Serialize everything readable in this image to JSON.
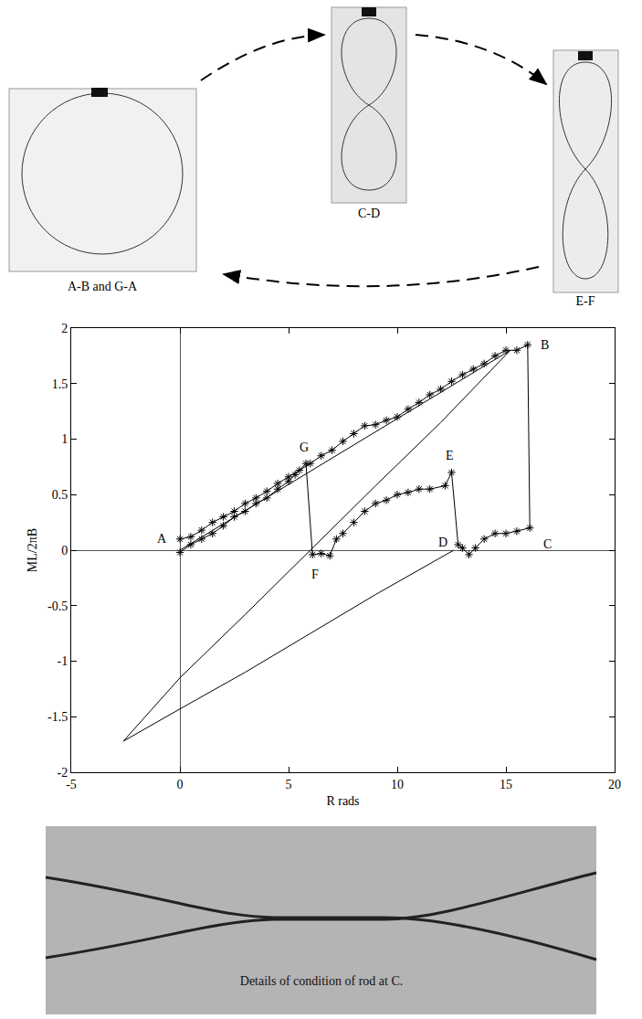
{
  "chart_data": {
    "type": "line",
    "x_label": "R rads",
    "y_label": "ML/2πB",
    "xlim": [
      -5,
      20
    ],
    "ylim": [
      -2,
      2
    ],
    "xticks": [
      -5,
      0,
      5,
      10,
      15,
      20
    ],
    "yticks": [
      -2,
      -1.5,
      -1,
      -0.5,
      0,
      0.5,
      1,
      1.5,
      2
    ],
    "grid": false,
    "series": [
      {
        "color": "#000000",
        "marker": "none",
        "line_style": "solid",
        "x": [
          0,
          15.2,
          12,
          9,
          6,
          3,
          0,
          -2.6,
          0,
          3,
          6,
          9,
          12.6
        ],
        "values": [
          0,
          1.8,
          1.15,
          0.58,
          0,
          -0.58,
          -1.15,
          -1.72,
          -1.43,
          -1.1,
          -0.75,
          -0.4,
          0
        ]
      },
      {
        "color": "#000000",
        "marker": "asterisk",
        "line_style": "solid",
        "x": [
          0,
          0.5,
          1,
          1.5,
          2,
          2.5,
          3,
          3.5,
          4,
          4.5,
          5,
          5.5,
          6,
          6.5,
          7,
          7.5,
          8,
          8.5,
          9,
          9.5,
          10,
          10.5,
          11,
          11.5,
          12,
          12.5,
          13,
          13.5,
          14,
          14.5,
          15,
          15.5,
          16,
          16.1,
          15.5,
          15,
          14.5,
          14,
          13.6,
          13.3,
          13,
          12.8,
          12.5,
          12.2,
          11.5,
          11,
          10.5,
          10,
          9.5,
          9,
          8.5,
          8,
          7.5,
          7.2,
          6.9,
          6.5,
          6.1,
          5.8,
          5.3,
          5,
          4.5,
          4,
          3.5,
          3,
          2.5,
          2,
          1.5,
          1,
          0.5,
          0
        ],
        "values": [
          0.1,
          0.12,
          0.18,
          0.25,
          0.3,
          0.35,
          0.42,
          0.47,
          0.53,
          0.6,
          0.66,
          0.72,
          0.78,
          0.85,
          0.9,
          0.98,
          1.05,
          1.12,
          1.13,
          1.17,
          1.2,
          1.27,
          1.33,
          1.4,
          1.45,
          1.52,
          1.58,
          1.63,
          1.68,
          1.75,
          1.8,
          1.8,
          1.85,
          0.2,
          0.17,
          0.15,
          0.15,
          0.1,
          0.02,
          -0.04,
          0.02,
          0.05,
          0.7,
          0.58,
          0.55,
          0.55,
          0.52,
          0.5,
          0.45,
          0.42,
          0.35,
          0.25,
          0.15,
          0.1,
          -0.05,
          -0.03,
          -0.04,
          0.78,
          0.68,
          0.62,
          0.55,
          0.47,
          0.42,
          0.35,
          0.3,
          0.22,
          0.15,
          0.1,
          0.05,
          -0.02
        ]
      }
    ],
    "annotations": [
      {
        "text": "A",
        "x": -0.8,
        "y": 0.1
      },
      {
        "text": "B",
        "x": 16.8,
        "y": 1.85
      },
      {
        "text": "C",
        "x": 16.9,
        "y": 0.05
      },
      {
        "text": "D",
        "x": 12.1,
        "y": 0.07
      },
      {
        "text": "E",
        "x": 12.4,
        "y": 0.85
      },
      {
        "text": "F",
        "x": 6.2,
        "y": -0.22
      },
      {
        "text": "G",
        "x": 5.7,
        "y": 0.93
      }
    ]
  },
  "photos": {
    "top": [
      {
        "caption": "A-B and G-A"
      },
      {
        "caption": "C-D"
      },
      {
        "caption": "E-F"
      }
    ],
    "bottom": {
      "caption": "Details of condition of rod at C."
    }
  }
}
